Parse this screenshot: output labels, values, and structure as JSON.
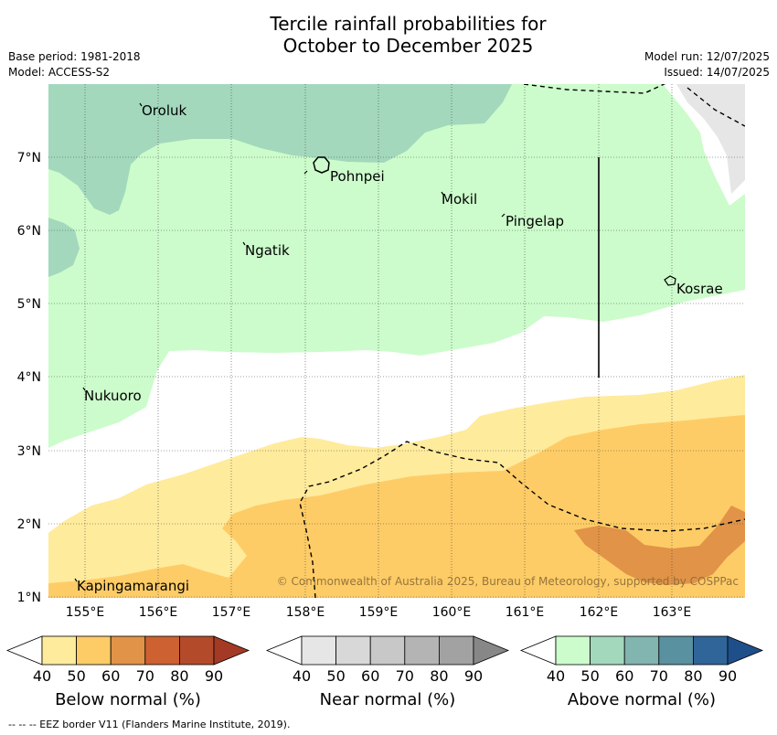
{
  "title_line1": "Tercile rainfall probabilities for",
  "title_line2": "October to December 2025",
  "meta": {
    "base_period": "Base period: 1981-2018",
    "model": "Model: ACCESS-S2",
    "model_run": "Model run: 12/07/2025",
    "issued": "Issued: 14/07/2025"
  },
  "map": {
    "lat_labels": [
      "7°N",
      "6°N",
      "5°N",
      "4°N",
      "3°N",
      "2°N",
      "1°N"
    ],
    "lon_labels": [
      "155°E",
      "156°E",
      "157°E",
      "158°E",
      "159°E",
      "160°E",
      "161°E",
      "162°E",
      "163°E"
    ],
    "places": {
      "oroluk": "Oroluk",
      "pohnpei": "Pohnpei",
      "mokil": "Mokil",
      "pingelap": "Pingelap",
      "ngatik": "Ngatik",
      "kosrae": "Kosrae",
      "nukuoro": "Nukuoro",
      "kapingamarangi": "Kapingamarangi"
    },
    "copyright": "© Commonwealth of Australia 2025, Bureau of Meteorology, supported by COSPPac"
  },
  "colorbars": {
    "below": {
      "title": "Below normal (%)",
      "ticks": [
        "40",
        "50",
        "60",
        "70",
        "80",
        "90"
      ],
      "colors": [
        "#ffffff",
        "#ffeb9c",
        "#fecc66",
        "#e19347",
        "#cd6131",
        "#b34b2a",
        "#a43a25"
      ]
    },
    "near": {
      "title": "Near normal (%)",
      "ticks": [
        "40",
        "50",
        "60",
        "70",
        "80",
        "90"
      ],
      "colors": [
        "#ffffff",
        "#e6e6e6",
        "#d8d8d8",
        "#c8c8c8",
        "#b4b4b4",
        "#a2a2a2",
        "#878787"
      ]
    },
    "above": {
      "title": "Above normal (%)",
      "ticks": [
        "40",
        "50",
        "60",
        "70",
        "80",
        "90"
      ],
      "colors": [
        "#ffffff",
        "#ccfccb",
        "#a3d8bd",
        "#82b4b0",
        "#5a91a1",
        "#306599",
        "#1f4f8a"
      ]
    }
  },
  "footer": "--  --  -- EEZ border V11 (Flanders Marine Institute, 2019)."
}
